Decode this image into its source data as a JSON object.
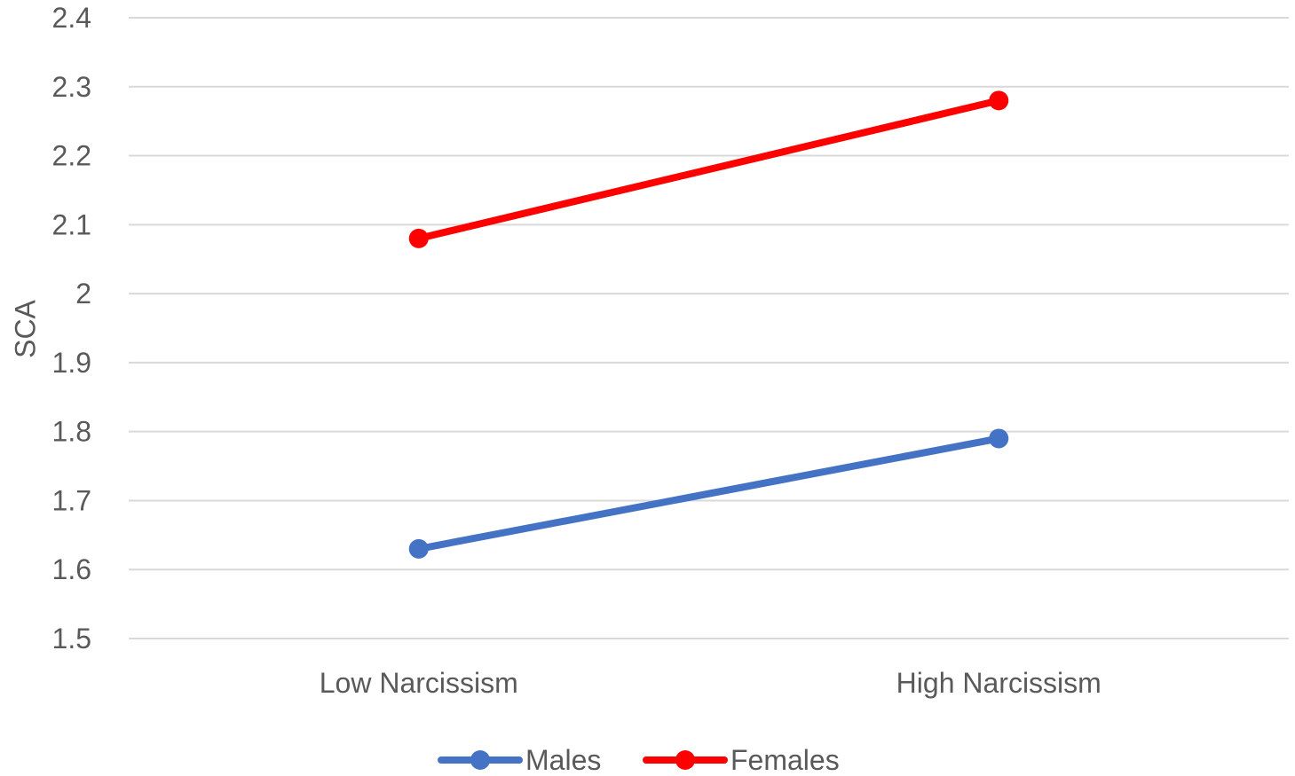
{
  "chart_data": {
    "type": "line",
    "title": "",
    "xlabel": "",
    "ylabel": "SCA",
    "categories": [
      "Low Narcissism",
      "High  Narcissism"
    ],
    "series": [
      {
        "name": "Males",
        "values": [
          1.63,
          1.79
        ],
        "color": "#4472c4"
      },
      {
        "name": "Females",
        "values": [
          2.08,
          2.28
        ],
        "color": "#ff0000"
      }
    ],
    "ylim": [
      1.5,
      2.4
    ],
    "yticks": [
      "1.5",
      "1.6",
      "1.7",
      "1.8",
      "1.9",
      "2",
      "2.1",
      "2.2",
      "2.3",
      "2.4"
    ],
    "grid": true,
    "legend_position": "bottom"
  }
}
